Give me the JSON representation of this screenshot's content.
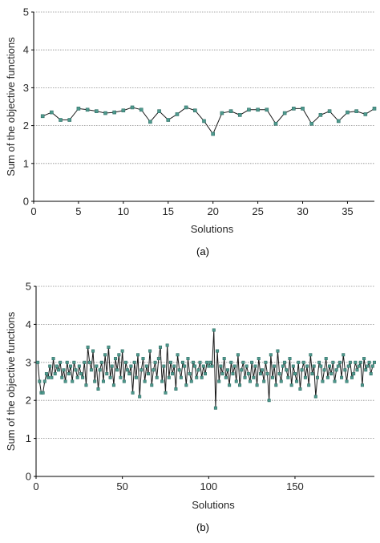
{
  "chart_data": [
    {
      "id": "a",
      "type": "line",
      "caption": "(a)",
      "xlabel": "Solutions",
      "ylabel": "Sum of the objective functions",
      "xlim": [
        0,
        38
      ],
      "ylim": [
        0,
        5
      ],
      "xticks": [
        0,
        5,
        10,
        15,
        20,
        25,
        30,
        35
      ],
      "yticks": [
        0,
        1,
        2,
        3,
        4,
        5
      ],
      "grid": "horizontal-dotted",
      "marker_color": "#4f9a8e",
      "x": [
        1,
        2,
        3,
        4,
        5,
        6,
        7,
        8,
        9,
        10,
        11,
        12,
        13,
        14,
        15,
        16,
        17,
        18,
        19,
        20,
        21,
        22,
        23,
        24,
        25,
        26,
        27,
        28,
        29,
        30,
        31,
        32,
        33,
        34,
        35,
        36,
        37,
        38
      ],
      "values": [
        2.25,
        2.35,
        2.15,
        2.15,
        2.45,
        2.42,
        2.38,
        2.33,
        2.35,
        2.4,
        2.48,
        2.42,
        2.1,
        2.38,
        2.15,
        2.3,
        2.48,
        2.4,
        2.12,
        1.78,
        2.33,
        2.38,
        2.28,
        2.42,
        2.42,
        2.42,
        2.05,
        2.33,
        2.45,
        2.45,
        2.05,
        2.28,
        2.38,
        2.12,
        2.35,
        2.38,
        2.3,
        2.45
      ]
    },
    {
      "id": "b",
      "type": "line",
      "caption": "(b)",
      "xlabel": "Solutions",
      "ylabel": "Sum of the objective functions",
      "xlim": [
        0,
        196
      ],
      "ylim": [
        0,
        5
      ],
      "xticks": [
        0,
        50,
        100,
        150
      ],
      "yticks": [
        0,
        1,
        2,
        3,
        4,
        5
      ],
      "grid": "horizontal-dotted",
      "marker_color": "#4f9a8e",
      "x_start": 1,
      "values": [
        3.0,
        2.5,
        2.2,
        2.2,
        2.5,
        2.7,
        2.6,
        2.9,
        2.6,
        3.1,
        2.7,
        2.9,
        2.8,
        3.0,
        2.6,
        2.8,
        2.5,
        3.0,
        2.7,
        2.9,
        2.5,
        3.0,
        2.8,
        2.6,
        2.9,
        2.7,
        2.6,
        3.0,
        2.4,
        3.4,
        3.0,
        2.8,
        3.3,
        2.5,
        2.9,
        2.3,
        2.8,
        3.0,
        2.5,
        3.2,
        2.7,
        3.4,
        2.6,
        2.9,
        2.4,
        3.1,
        2.8,
        3.2,
        2.6,
        3.3,
        2.5,
        3.0,
        2.8,
        2.7,
        2.9,
        2.2,
        3.0,
        2.6,
        3.2,
        2.1,
        2.8,
        3.1,
        2.5,
        2.9,
        2.7,
        3.3,
        2.4,
        2.8,
        3.0,
        2.6,
        3.1,
        3.4,
        2.5,
        2.9,
        2.2,
        3.45,
        2.6,
        3.0,
        2.7,
        2.9,
        2.3,
        3.2,
        2.8,
        2.6,
        3.0,
        2.9,
        2.4,
        3.1,
        2.7,
        2.5,
        3.0,
        2.9,
        2.6,
        2.8,
        3.0,
        2.6,
        2.9,
        2.7,
        3.0,
        2.9,
        3.0,
        2.9,
        3.85,
        1.8,
        3.3,
        2.5,
        2.9,
        2.7,
        3.1,
        2.6,
        2.8,
        2.4,
        3.0,
        2.7,
        2.9,
        2.5,
        3.2,
        2.4,
        2.8,
        3.0,
        2.6,
        2.9,
        2.7,
        2.5,
        3.0,
        2.6,
        2.9,
        2.4,
        3.1,
        2.7,
        2.8,
        2.5,
        3.0,
        2.7,
        2.0,
        3.2,
        2.6,
        2.9,
        2.4,
        3.3,
        2.7,
        2.5,
        2.9,
        3.0,
        2.8,
        2.6,
        3.1,
        2.4,
        2.9,
        2.7,
        2.5,
        3.0,
        2.3,
        2.8,
        3.0,
        2.6,
        2.9,
        2.4,
        3.2,
        2.7,
        2.9,
        2.1,
        2.6,
        3.0,
        2.9,
        2.5,
        2.8,
        3.1,
        2.6,
        2.9,
        2.7,
        3.0,
        2.5,
        2.8,
        2.9,
        3.0,
        2.6,
        3.2,
        2.8,
        2.5,
        2.9,
        3.0,
        2.6,
        2.7,
        3.0,
        2.8,
        2.9,
        3.0,
        2.4,
        3.1,
        2.8,
        2.9,
        3.0,
        2.7,
        2.9,
        3.0
      ]
    }
  ]
}
